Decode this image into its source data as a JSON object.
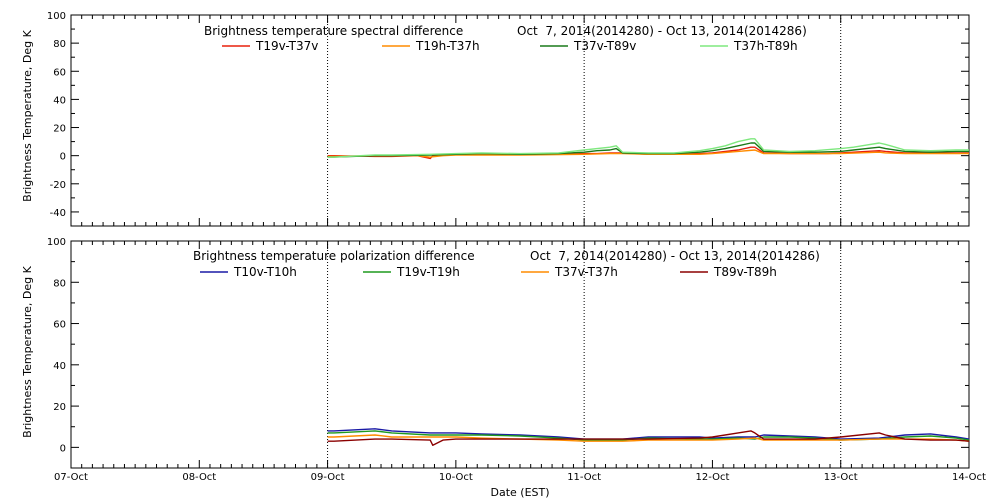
{
  "chart_data": [
    {
      "type": "line",
      "title_left": "Brightness temperature spectral difference",
      "title_right": "Oct  7, 2014(2014280) - Oct 13, 2014(2014286)",
      "ylabel": "Brightness Temperature, Deg K",
      "xlabel": "",
      "ylim": [
        -50,
        100
      ],
      "yticks": [
        -40,
        -20,
        0,
        20,
        40,
        60,
        80,
        100
      ],
      "xlim": [
        0,
        7
      ],
      "day_dividers": [
        2,
        4,
        6
      ],
      "series": [
        {
          "name": "T19v-T37v",
          "color": "#e8200c",
          "x": [
            2.0,
            2.05,
            2.37,
            2.5,
            2.7,
            2.8,
            2.82,
            2.9,
            3.0,
            3.2,
            3.5,
            3.8,
            4.0,
            4.1,
            4.2,
            4.3,
            4.5,
            4.7,
            4.9,
            5.0,
            5.1,
            5.2,
            5.3,
            5.33,
            5.4,
            5.6,
            5.8,
            5.9,
            6.0,
            6.1,
            6.2,
            6.3,
            6.35,
            6.5,
            6.7,
            6.9,
            7.0
          ],
          "values": [
            0,
            0,
            -0.5,
            -0.5,
            0,
            -2,
            0,
            0.5,
            1,
            1,
            1,
            1,
            1.5,
            1.5,
            2,
            2,
            1,
            1,
            1.5,
            2,
            3,
            4,
            6,
            6,
            2,
            1.5,
            1.5,
            1.5,
            2,
            2.5,
            3,
            3.5,
            3,
            2,
            2,
            2,
            2
          ]
        },
        {
          "name": "T19h-T37h",
          "color": "#ff8c00",
          "x": [
            2.0,
            2.05,
            2.37,
            2.5,
            2.7,
            2.8,
            2.9,
            3.0,
            3.5,
            4.0,
            4.2,
            4.3,
            4.5,
            4.9,
            5.0,
            5.2,
            5.33,
            5.4,
            6.0,
            6.3,
            6.35,
            6.5,
            7.0
          ],
          "values": [
            -0.5,
            -0.5,
            0,
            0,
            0,
            -1,
            0,
            0.5,
            0.5,
            1,
            1.5,
            1.5,
            1,
            1,
            1.5,
            3,
            4,
            1.5,
            1.5,
            2.5,
            2,
            1.5,
            1.5
          ]
        },
        {
          "name": "T37v-T89v",
          "color": "#1a7a1a",
          "x": [
            2.0,
            2.05,
            2.37,
            2.5,
            2.8,
            3.0,
            3.2,
            3.5,
            3.8,
            4.0,
            4.1,
            4.2,
            4.25,
            4.3,
            4.5,
            4.7,
            4.9,
            5.0,
            5.1,
            5.2,
            5.3,
            5.33,
            5.4,
            5.6,
            5.8,
            6.0,
            6.1,
            6.2,
            6.3,
            6.35,
            6.5,
            6.7,
            6.9,
            7.0
          ],
          "values": [
            -1,
            -1,
            0,
            0,
            0.5,
            1,
            1.5,
            1,
            1.5,
            2.5,
            3.5,
            4,
            5,
            2,
            1.5,
            1.5,
            2.5,
            3.5,
            5,
            7,
            9,
            9,
            3,
            2.5,
            2.5,
            3,
            4,
            5,
            6,
            5,
            3,
            2.5,
            3,
            3
          ]
        },
        {
          "name": "T37h-T89h",
          "color": "#7ee87e",
          "x": [
            2.0,
            2.05,
            2.37,
            2.5,
            2.8,
            3.0,
            3.2,
            3.5,
            3.8,
            4.0,
            4.1,
            4.2,
            4.25,
            4.3,
            4.5,
            4.7,
            4.9,
            5.0,
            5.1,
            5.2,
            5.3,
            5.33,
            5.4,
            5.6,
            5.8,
            6.0,
            6.1,
            6.2,
            6.3,
            6.35,
            6.5,
            6.7,
            6.9,
            7.0
          ],
          "values": [
            -1,
            -1,
            0.5,
            0.5,
            1,
            1.5,
            2,
            1.5,
            2,
            4,
            5,
            6,
            7,
            2.5,
            2,
            2,
            3.5,
            5,
            7,
            10,
            12,
            12,
            4,
            3,
            3.5,
            5,
            6,
            7.5,
            9,
            8,
            4,
            3.5,
            4,
            4
          ]
        }
      ]
    },
    {
      "type": "line",
      "title_left": "Brightness temperature polarization difference",
      "title_right": "Oct  7, 2014(2014280) - Oct 13, 2014(2014286)",
      "ylabel": "Brightness Temperature, Deg K",
      "xlabel": "Date (EST)",
      "ylim": [
        -10,
        100
      ],
      "yticks": [
        0,
        20,
        40,
        60,
        80,
        100
      ],
      "xlim": [
        0,
        7
      ],
      "day_dividers": [
        2,
        4,
        6
      ],
      "xticks": [
        "07-Oct",
        "08-Oct",
        "09-Oct",
        "10-Oct",
        "11-Oct",
        "12-Oct",
        "13-Oct",
        "14-Oct"
      ],
      "series": [
        {
          "name": "T10v-T10h",
          "color": "#1a1aa6",
          "x": [
            2.0,
            2.05,
            2.37,
            2.5,
            2.8,
            3.0,
            3.2,
            3.5,
            3.8,
            4.0,
            4.3,
            4.5,
            4.9,
            5.0,
            5.2,
            5.33,
            5.4,
            5.6,
            5.8,
            6.0,
            6.3,
            6.5,
            6.7,
            6.9,
            7.0
          ],
          "values": [
            8,
            8,
            9,
            8,
            7,
            7,
            6.5,
            6,
            5,
            4,
            4,
            5,
            5,
            4.5,
            5,
            5,
            6,
            5.5,
            5,
            4,
            4.5,
            6,
            6.5,
            5,
            4
          ]
        },
        {
          "name": "T19v-T19h",
          "color": "#1f9a1f",
          "x": [
            2.0,
            2.05,
            2.37,
            2.5,
            2.8,
            3.0,
            3.2,
            3.5,
            3.8,
            4.0,
            4.3,
            4.5,
            4.9,
            5.0,
            5.2,
            5.33,
            5.4,
            5.6,
            5.8,
            6.0,
            6.3,
            6.5,
            6.7,
            6.9,
            7.0
          ],
          "values": [
            7,
            7,
            8,
            7,
            6,
            6,
            6,
            5.5,
            4.5,
            3.5,
            3.5,
            4.5,
            4,
            4,
            4.5,
            4,
            5,
            5,
            4.5,
            3.5,
            4,
            5,
            5.5,
            4.5,
            3.5
          ]
        },
        {
          "name": "T37v-T37h",
          "color": "#ff8c00",
          "x": [
            2.0,
            2.05,
            2.37,
            2.5,
            2.8,
            3.0,
            3.2,
            3.5,
            3.8,
            4.0,
            4.3,
            4.5,
            4.9,
            5.0,
            5.2,
            5.33,
            5.4,
            5.6,
            5.8,
            6.0,
            6.3,
            6.5,
            6.7,
            6.9,
            7.0
          ],
          "values": [
            5,
            5,
            6,
            5,
            5,
            5,
            4.5,
            4,
            3.5,
            3,
            3,
            3.5,
            3.5,
            3.5,
            4,
            4.5,
            3.5,
            3.5,
            3.5,
            3.5,
            4,
            4,
            4,
            3.5,
            3
          ]
        },
        {
          "name": "T89v-T89h",
          "color": "#8b0000",
          "x": [
            2.0,
            2.05,
            2.37,
            2.5,
            2.8,
            2.82,
            2.9,
            3.0,
            3.2,
            3.5,
            3.8,
            4.0,
            4.3,
            4.5,
            4.9,
            5.0,
            5.2,
            5.3,
            5.33,
            5.4,
            5.6,
            5.8,
            6.0,
            6.3,
            6.35,
            6.5,
            6.7,
            6.9,
            7.0
          ],
          "values": [
            3,
            3,
            4,
            4,
            3.5,
            1,
            3.5,
            4,
            4,
            4,
            4,
            4,
            4,
            4,
            4.5,
            5,
            7,
            8,
            7,
            4,
            4,
            4,
            5,
            7,
            6,
            4,
            3.5,
            3.5,
            3
          ]
        }
      ]
    }
  ]
}
